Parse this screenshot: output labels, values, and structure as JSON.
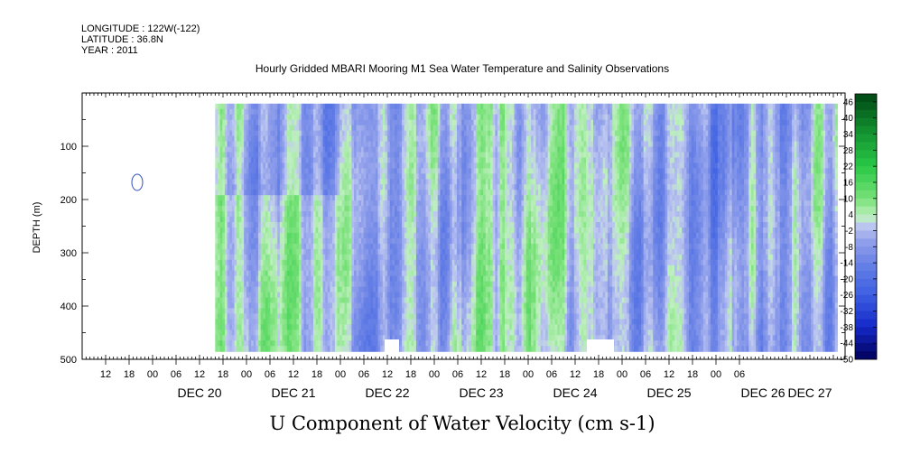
{
  "header": {
    "longitude": "LONGITUDE : 122W(-122)",
    "latitude": "LATITUDE : 36.8N",
    "year": "YEAR : 2011"
  },
  "chart_data": {
    "type": "heatmap",
    "title": "Hourly Gridded MBARI Mooring M1 Sea Water Temperature and Salinity Observations",
    "xlabel": "U Component of Water Velocity (cm s-1)",
    "ylabel": "DEPTH (m)",
    "y_inverted": true,
    "ylim": [
      500,
      0
    ],
    "y_ticks": [
      100,
      200,
      300,
      400,
      500
    ],
    "x_hour_ticks": [
      "12",
      "18",
      "00",
      "06",
      "12",
      "18",
      "00",
      "06",
      "12",
      "18",
      "00",
      "06",
      "12",
      "18",
      "00",
      "06",
      "12",
      "18",
      "00",
      "06",
      "12",
      "18",
      "00",
      "06",
      "12",
      "18",
      "00",
      "06"
    ],
    "x_day_labels": [
      "DEC 20",
      "DEC 21",
      "DEC 22",
      "DEC 23",
      "DEC 24",
      "DEC 25",
      "DEC 26",
      "DEC 27"
    ],
    "x_range": [
      "DEC 19 06:00",
      "DEC 27 09:00"
    ],
    "data_range": [
      "DEC 20 16:00",
      "DEC 27 07:00"
    ],
    "depth_range": [
      20,
      485
    ],
    "colorbar": {
      "labels": [
        "46",
        "40",
        "34",
        "28",
        "22",
        "16",
        "10",
        "4",
        "-2",
        "-8",
        "-14",
        "-20",
        "-26",
        "-32",
        "-38",
        "-44",
        "-50"
      ],
      "levels_min": -50,
      "levels_max": 49,
      "level_step": 3
    }
  }
}
